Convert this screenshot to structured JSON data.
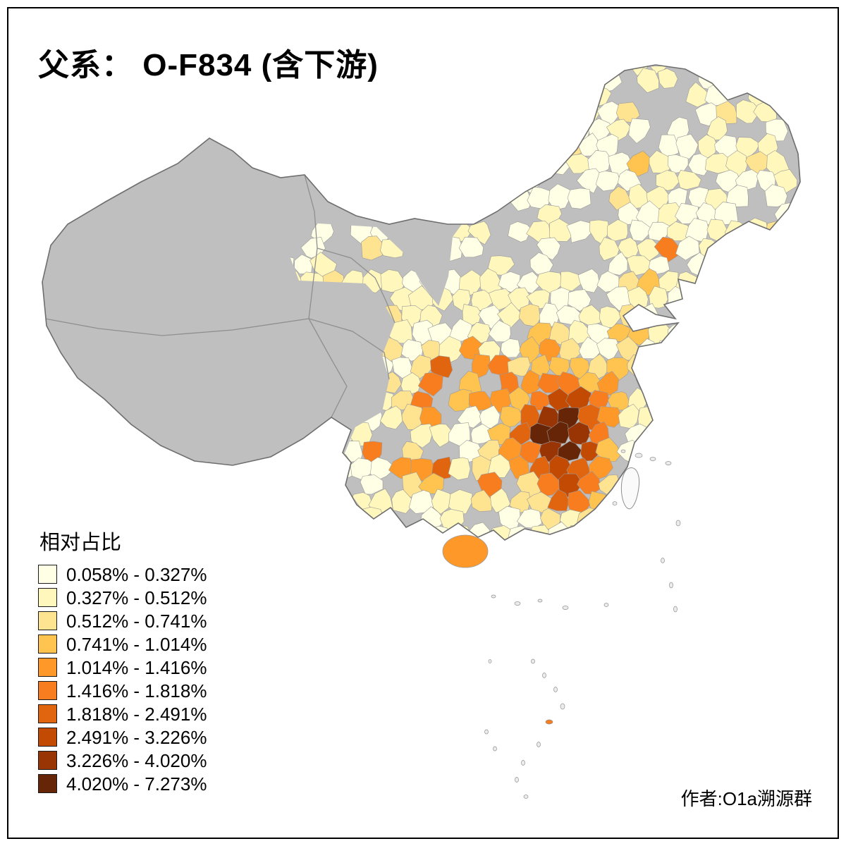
{
  "title": "父系： O-F834 (含下游)",
  "legend": {
    "title": "相对占比",
    "items": [
      {
        "range": "0.058% - 0.327%",
        "color": "#FFFFE5"
      },
      {
        "range": "0.327% - 0.512%",
        "color": "#FFF7BC"
      },
      {
        "range": "0.512% - 0.741%",
        "color": "#FEE391"
      },
      {
        "range": "0.741% - 1.014%",
        "color": "#FEC44F"
      },
      {
        "range": "1.014% - 1.416%",
        "color": "#FE9929"
      },
      {
        "range": "1.416% - 1.818%",
        "color": "#F87D1E"
      },
      {
        "range": "1.818% - 2.491%",
        "color": "#E1640E"
      },
      {
        "range": "2.491% - 3.226%",
        "color": "#C24A02"
      },
      {
        "range": "3.226% - 4.020%",
        "color": "#993404"
      },
      {
        "range": "4.020% - 7.273%",
        "color": "#662506"
      }
    ]
  },
  "attribution": "作者:O1a溯源群",
  "map": {
    "nodata_color": "#BFBFBF",
    "border_color": "#6E6E6E",
    "cell_border_color": "#9B9B9B",
    "sea_color": "#FFFFFF"
  }
}
